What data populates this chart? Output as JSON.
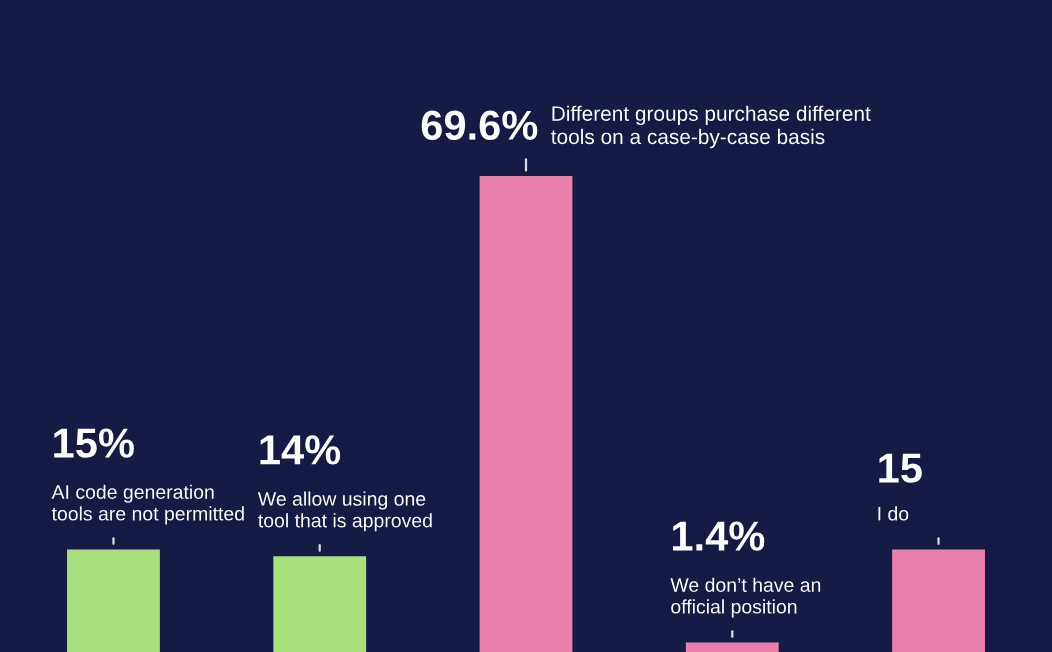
{
  "chart_data": {
    "type": "bar",
    "categories": [
      null,
      null,
      null,
      null,
      null
    ],
    "annotations": [
      "AI code generation\ntools are not permitted",
      "We allow using one\ntool that is approved",
      "Different groups purchase different\ntools on a case-by-case basis",
      "We don’t have an\nofficial position",
      "I do"
    ],
    "values": [
      15,
      14,
      69.6,
      1.4,
      15
    ],
    "value_labels": [
      "15%",
      "14%",
      "69.6%",
      "1.4%",
      "15"
    ],
    "colors": [
      "#a8e07c",
      "#a8e07c",
      "#e97fab",
      "#e97fab",
      "#e97fab"
    ],
    "tick_labels": false
  }
}
